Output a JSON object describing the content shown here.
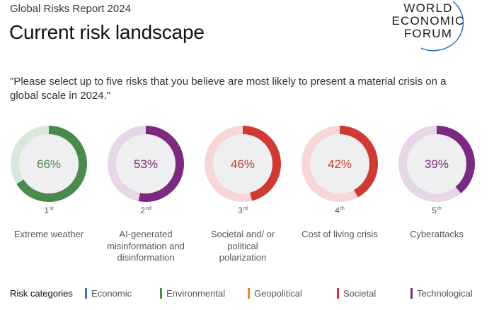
{
  "header": {
    "report_label": "Global Risks Report 2024",
    "title": "Current risk landscape"
  },
  "logo": {
    "line1": "WORLD",
    "line2": "ECONOMIC",
    "line3": "FORUM",
    "arc_color": "#2f6fb6"
  },
  "question": "\"Please select up to five risks that you believe are most likely to present a material crisis on a global scale in 2024.\"",
  "chart_data": {
    "type": "donut",
    "unit": "%",
    "items": [
      {
        "rank": "1",
        "rank_suffix": "st",
        "label": "Extreme weather",
        "value": 66,
        "value_label": "66%",
        "category": "Environmental"
      },
      {
        "rank": "2",
        "rank_suffix": "nd",
        "label": "AI-generated misinformation and disinformation",
        "value": 53,
        "value_label": "53%",
        "category": "Technological"
      },
      {
        "rank": "3",
        "rank_suffix": "rd",
        "label": "Societal and/ or political polarization",
        "value": 46,
        "value_label": "46%",
        "category": "Societal"
      },
      {
        "rank": "4",
        "rank_suffix": "th",
        "label": "Cost of living crisis",
        "value": 42,
        "value_label": "42%",
        "category": "Societal"
      },
      {
        "rank": "5",
        "rank_suffix": "th",
        "label": "Cyberattacks",
        "value": 39,
        "value_label": "39%",
        "category": "Technological"
      }
    ],
    "legend": {
      "title": "Risk categories",
      "categories": [
        {
          "name": "Economic",
          "color": "#3a78c2"
        },
        {
          "name": "Environmental",
          "color": "#4a8a4f"
        },
        {
          "name": "Geopolitical",
          "color": "#e08a2e"
        },
        {
          "name": "Societal",
          "color": "#cf3b34"
        },
        {
          "name": "Technological",
          "color": "#7b2a7f"
        }
      ]
    },
    "track_colors": {
      "Environmental": "#d8e8da",
      "Technological": "#e6d6e8",
      "Societal": "#f6d7d5"
    },
    "center_fill": "#efeff1"
  }
}
